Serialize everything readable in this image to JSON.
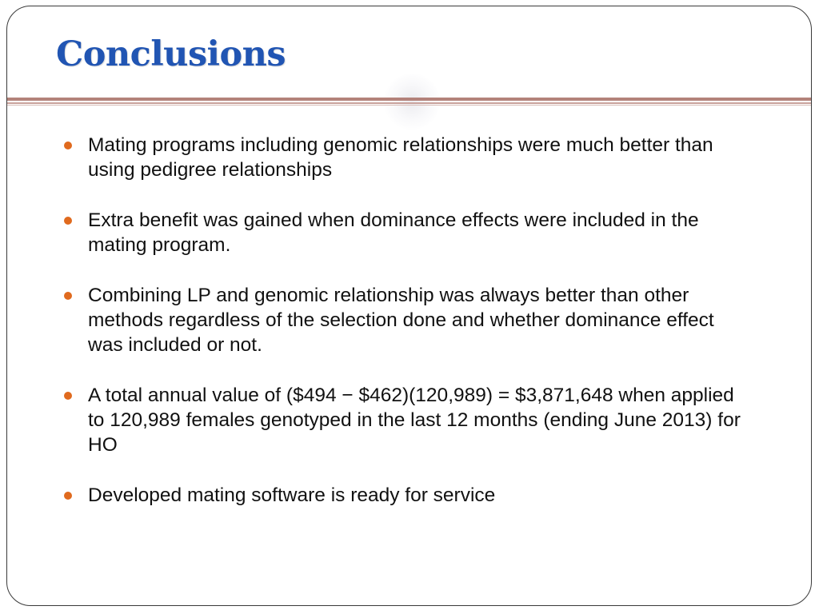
{
  "slide": {
    "title": "Conclusions",
    "bullets": [
      "Mating programs including genomic relationships were much better than using pedigree relationships",
      "Extra benefit was gained when dominance effects were included in the mating program.",
      "Combining LP and genomic relationship was always better than other methods regardless of the selection done and whether dominance effect was included or not.",
      "A total annual value of ($494 − $462)(120,989) = $3,871,648 when applied to 120,989 females genotyped in the last 12 months (ending June 2013) for HO",
      "Developed mating software is ready for service"
    ]
  },
  "colors": {
    "title": "#2155b3",
    "bullet": "#e06a1e",
    "divider": "#b3827a",
    "text": "#111111"
  }
}
